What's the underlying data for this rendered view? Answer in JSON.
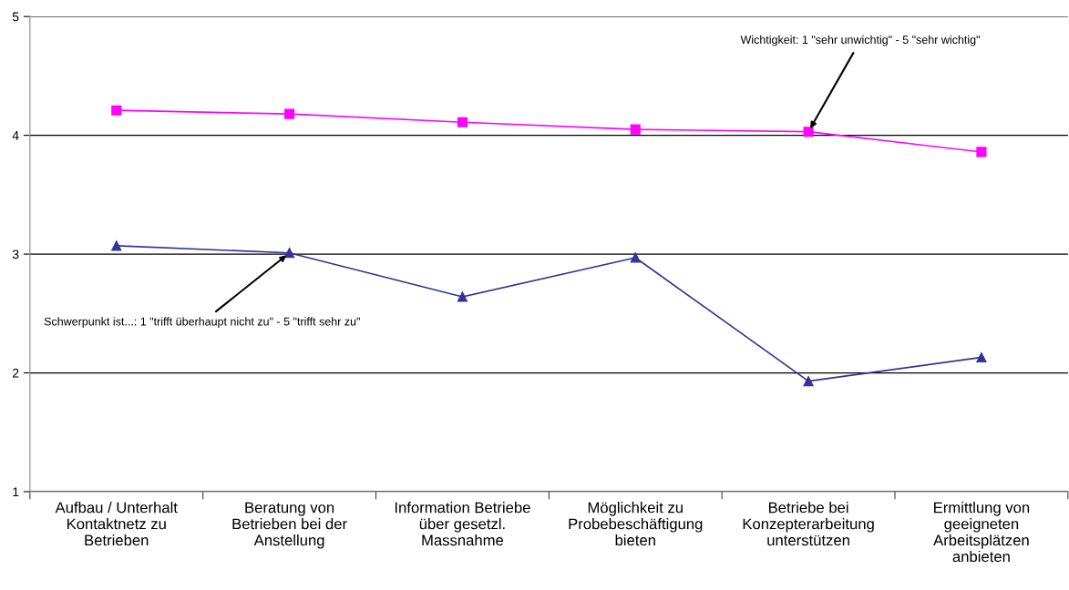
{
  "chart_data": {
    "type": "line",
    "categories": [
      "Aufbau / Unterhalt\nKontaktnetz zu\nBetrieben",
      "Beratung von\nBetrieben bei der\nAnstellung",
      "Information Betriebe\nüber gesetzl.\nMassnahme",
      "Möglichkeit zu\nProbebeschäftigung\nbieten",
      "Betriebe bei\nKonzepterarbeitung\nunterstützen",
      "Ermittlung von\ngeeigneten\nArbeitsplätzen\nanbieten"
    ],
    "series": [
      {
        "color": "#ff00ff",
        "marker": "square",
        "values": [
          4.21,
          4.18,
          4.11,
          4.05,
          4.03,
          3.86
        ]
      },
      {
        "color": "#333399",
        "marker": "triangle",
        "values": [
          3.07,
          3.01,
          2.64,
          2.97,
          1.93,
          2.13
        ]
      }
    ],
    "ylim": [
      1,
      5
    ],
    "yticks": [
      1,
      2,
      3,
      4,
      5
    ],
    "grid": "y",
    "line_style": "solid",
    "annotations": [
      {
        "text": "Wichtigkeit: 1 \"sehr unwichtig\" - 5 \"sehr wichtig\"",
        "x": "Betriebe bei\nKonzepterarbeitung\nunterstützen",
        "y": 4.03
      },
      {
        "text": "Schwerpunkt ist...: 1 \"trifft überhaupt nicht zu\" - 5 \"trifft sehr zu\"",
        "x": "Beratung von\nBetrieben bei der\nAnstellung",
        "y": 3.01
      }
    ]
  }
}
